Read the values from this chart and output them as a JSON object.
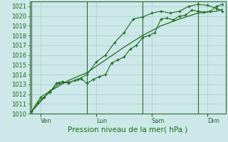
{
  "title": "Pression niveau de la mer( hPa )",
  "background_color": "#cce8e8",
  "grid_color": "#aacccc",
  "line_color": "#1a6b1a",
  "ylim": [
    1010,
    1021.5
  ],
  "yticks": [
    1010,
    1011,
    1012,
    1013,
    1014,
    1015,
    1016,
    1017,
    1018,
    1019,
    1020,
    1021
  ],
  "day_labels": [
    "Ven",
    "Lun",
    "Sam",
    "Dim"
  ],
  "day_positions": [
    0.5,
    3.5,
    6.5,
    9.5
  ],
  "vline_positions": [
    0.0,
    3.0,
    6.0,
    9.0
  ],
  "xlim": [
    -0.1,
    10.5
  ],
  "series1_x": [
    0.0,
    0.33,
    0.67,
    1.0,
    1.33,
    1.67,
    2.0,
    2.33,
    2.67,
    3.0,
    3.33,
    3.67,
    4.0,
    4.33,
    4.67,
    5.0,
    5.33,
    5.67,
    6.0,
    6.33,
    6.67,
    7.0,
    7.33,
    7.67,
    8.0,
    8.33,
    8.67,
    9.0,
    9.33,
    9.67,
    10.0,
    10.33
  ],
  "series1_y": [
    1010.2,
    1011.1,
    1011.7,
    1012.2,
    1013.1,
    1013.3,
    1013.1,
    1013.4,
    1013.6,
    1013.1,
    1013.5,
    1013.8,
    1014.0,
    1015.2,
    1015.5,
    1015.8,
    1016.6,
    1017.0,
    1017.8,
    1018.0,
    1018.3,
    1019.7,
    1019.8,
    1019.6,
    1020.0,
    1020.1,
    1020.6,
    1020.5,
    1020.4,
    1020.5,
    1021.0,
    1021.2
  ],
  "series2_x": [
    0.0,
    0.5,
    1.0,
    1.5,
    2.0,
    2.5,
    3.0,
    3.5,
    4.0,
    4.5,
    5.0,
    5.5,
    6.0,
    6.5,
    7.0,
    7.5,
    8.0,
    8.5,
    9.0,
    9.5,
    10.0,
    10.33
  ],
  "series2_y": [
    1010.2,
    1011.7,
    1012.3,
    1013.1,
    1013.2,
    1013.5,
    1014.0,
    1015.3,
    1016.0,
    1017.3,
    1018.3,
    1019.7,
    1019.9,
    1020.3,
    1020.5,
    1020.3,
    1020.5,
    1021.0,
    1021.2,
    1021.1,
    1020.8,
    1020.5
  ],
  "series3_x": [
    0.0,
    1.0,
    2.0,
    3.0,
    4.0,
    5.0,
    6.0,
    7.0,
    8.0,
    9.0,
    10.0,
    10.33
  ],
  "series3_y": [
    1010.2,
    1012.3,
    1013.4,
    1014.2,
    1015.5,
    1016.8,
    1018.0,
    1019.0,
    1019.7,
    1020.3,
    1020.5,
    1020.7
  ],
  "tick_fontsize": 6,
  "label_fontsize": 7.5,
  "vline_color": "#336633"
}
